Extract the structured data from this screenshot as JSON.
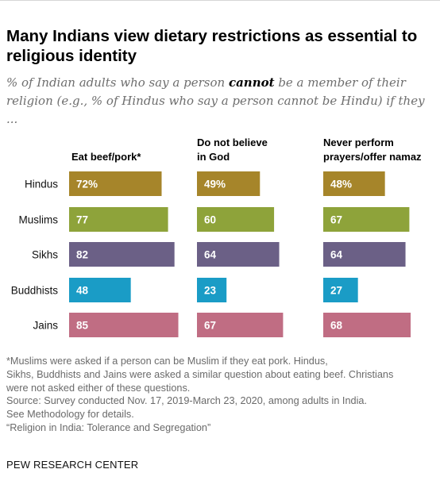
{
  "header": {
    "title": "Many Indians view dietary restrictions as essential to religious identity",
    "subtitle_before": "% of Indian adults who say a person ",
    "subtitle_bold": "cannot",
    "subtitle_after": " be a member of their religion (e.g., % of Hindus who say a person cannot be Hindu) if they ..."
  },
  "chart_data": {
    "type": "bar",
    "categories": [
      "Hindus",
      "Muslims",
      "Sikhs",
      "Buddhists",
      "Jains"
    ],
    "colors": [
      "#a6852a",
      "#8ea33a",
      "#6b6086",
      "#1a9cc6",
      "#c06d83"
    ],
    "panels": [
      {
        "label": "Eat beef/pork*",
        "values": [
          72,
          77,
          82,
          48,
          85
        ],
        "labels": [
          "72%",
          "77",
          "82",
          "48",
          "85"
        ]
      },
      {
        "label": "Do not believe in God",
        "values": [
          49,
          60,
          64,
          23,
          67
        ],
        "labels": [
          "49%",
          "60",
          "64",
          "23",
          "67"
        ]
      },
      {
        "label": "Never perform prayers/offer namaz",
        "values": [
          48,
          67,
          64,
          27,
          68
        ],
        "labels": [
          "48%",
          "67",
          "64",
          "27",
          "68"
        ]
      }
    ],
    "xlabel": "",
    "ylabel": "",
    "xlim": [
      0,
      100
    ],
    "grid": false
  },
  "notes": {
    "footnote": "*Muslims were asked if a person can be Muslim if they eat pork. Hindus, Sikhs, Buddhists and Jains were asked a similar question about eating beef. Christians were not asked either of these questions.",
    "source": "Source: Survey conducted Nov. 17, 2019-March 23, 2020, among adults in India. See Methodology for details.",
    "report": "“Religion in India: Tolerance and Segregation”"
  },
  "organization": "PEW RESEARCH CENTER"
}
